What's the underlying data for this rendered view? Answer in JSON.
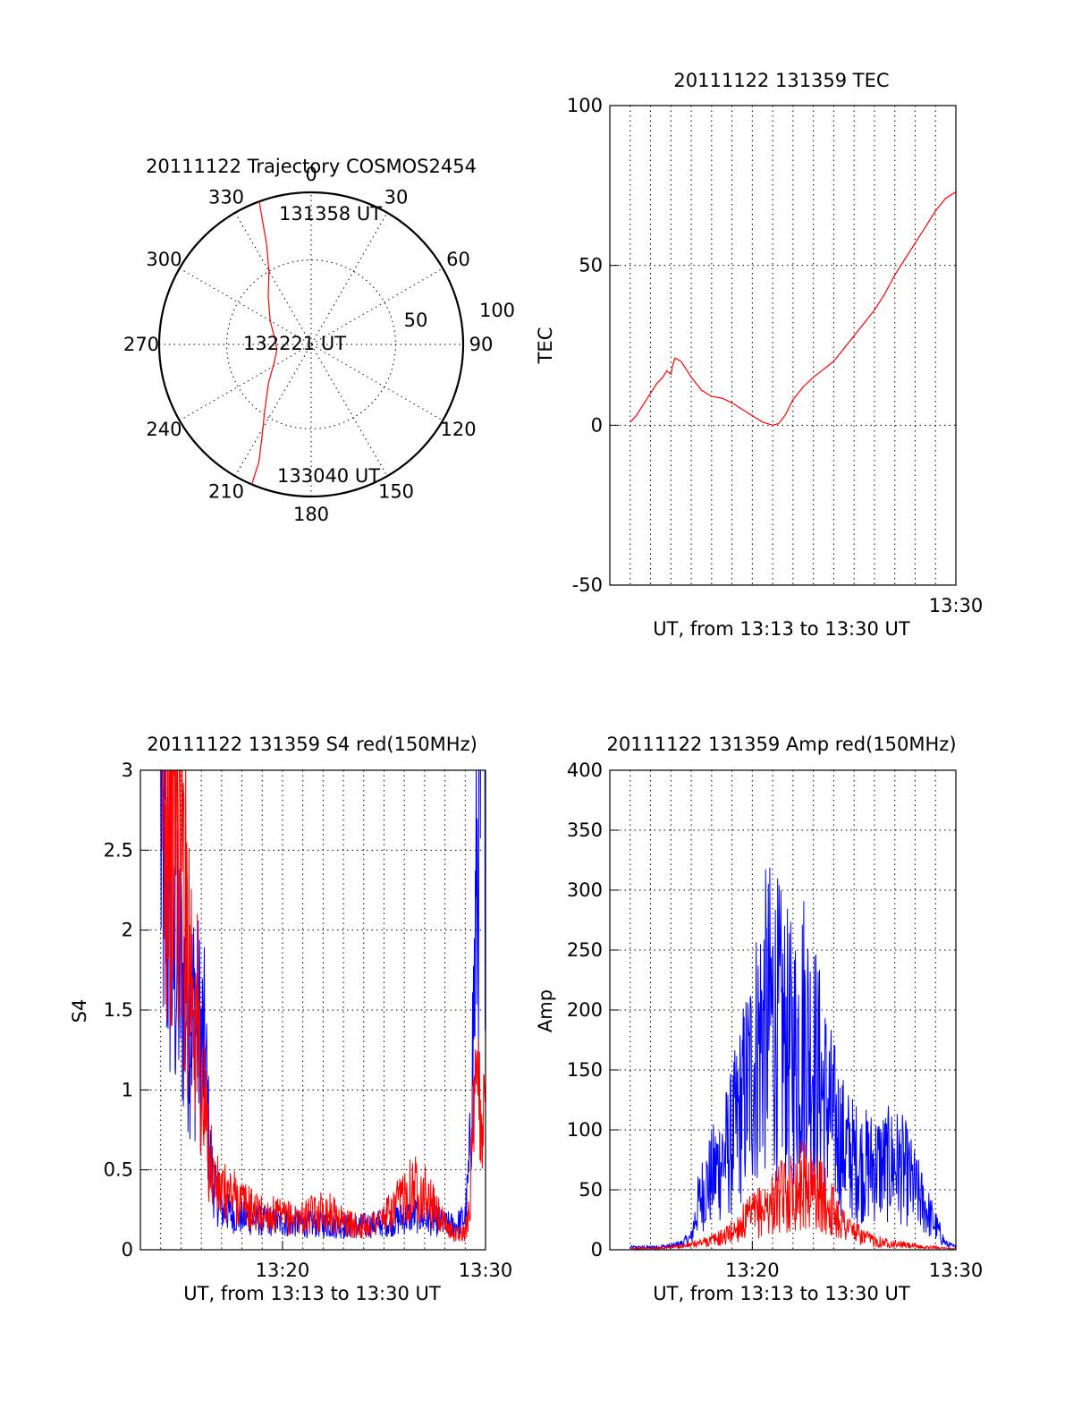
{
  "chart_data": [
    {
      "type": "polar",
      "title": "20111122 Trajectory COSMOS2454",
      "angle_labels": [
        "0",
        "30",
        "60",
        "90",
        "120",
        "150",
        "180",
        "210",
        "240",
        "270",
        "300",
        "330"
      ],
      "radial_labels": [
        "50",
        "100"
      ],
      "track": [
        [
          340,
          90
        ],
        [
          336,
          65
        ],
        [
          330,
          50
        ],
        [
          318,
          38
        ],
        [
          300,
          28
        ],
        [
          280,
          22
        ],
        [
          262,
          20.5
        ],
        [
          245,
          24
        ],
        [
          228,
          34
        ],
        [
          215,
          48
        ],
        [
          208,
          62
        ],
        [
          204,
          76
        ],
        [
          203,
          90
        ]
      ],
      "start_label": "131358 UT",
      "mid_label": "132221 UT",
      "end_label": "133040 UT",
      "color": "#ff0000"
    },
    {
      "type": "line",
      "title": "20111122 131359 TEC",
      "ylabel": "TEC",
      "xlabel": "UT, from 13:13 to 13:30 UT",
      "xlim": [
        "13:13",
        "13:30"
      ],
      "ylim": [
        -50,
        100
      ],
      "yticks": [
        "-50",
        "0",
        "50",
        "100"
      ],
      "xticks": [
        "13:30"
      ],
      "grid": true,
      "series": [
        {
          "color": "#ff0000",
          "x": [
            "13:14.0",
            "13:14.3",
            "13:14.7",
            "13:15.0",
            "13:15.3",
            "13:15.6",
            "13:15.8",
            "13:16.0",
            "13:16.1",
            "13:16.2",
            "13:16.5",
            "13:17.0",
            "13:17.5",
            "13:18.0",
            "13:18.5",
            "13:19.0",
            "13:19.5",
            "13:20.0",
            "13:20.5",
            "13:21.0",
            "13:21.3",
            "13:21.6",
            "13:22.0",
            "13:22.5",
            "13:23.0",
            "13:23.5",
            "13:24.0",
            "13:24.5",
            "13:25.0",
            "13:25.5",
            "13:26.0",
            "13:26.5",
            "13:27.0",
            "13:27.5",
            "13:28.0",
            "13:28.5",
            "13:29.0",
            "13:29.5",
            "13:30.0"
          ],
          "values": [
            1,
            3,
            7,
            10,
            13,
            15,
            17,
            16,
            19,
            21,
            20,
            15,
            11,
            9,
            8.5,
            7,
            5,
            3,
            1,
            0,
            0.5,
            3,
            8,
            12,
            15,
            17.5,
            20,
            24,
            28,
            32,
            36,
            41,
            47,
            52,
            57,
            62,
            67,
            71,
            73
          ]
        }
      ]
    },
    {
      "type": "line",
      "title": "20111122 131359 S4 red(150MHz)",
      "ylabel": "S4",
      "xlabel": "UT, from 13:13 to 13:30 UT",
      "xlim": [
        "13:13",
        "13:30"
      ],
      "ylim": [
        0,
        3
      ],
      "yticks": [
        "0",
        "0.5",
        "1",
        "1.5",
        "2",
        "2.5",
        "3"
      ],
      "xticks": [
        "13:20",
        "13:30"
      ],
      "grid": true,
      "series": [
        {
          "color": "#0000ff",
          "x": [
            "13:14.0",
            "13:14.3",
            "13:14.6",
            "13:14.9",
            "13:15.2",
            "13:15.5",
            "13:15.8",
            "13:16.0",
            "13:16.2",
            "13:16.4",
            "13:16.7",
            "13:17.0",
            "13:17.5",
            "13:18.0",
            "13:18.5",
            "13:19.0",
            "13:19.5",
            "13:20.0",
            "13:20.5",
            "13:21.0",
            "13:21.5",
            "13:22.0",
            "13:22.5",
            "13:23.0",
            "13:23.5",
            "13:24.0",
            "13:24.5",
            "13:25.0",
            "13:25.5",
            "13:26.0",
            "13:26.5",
            "13:27.0",
            "13:27.5",
            "13:28.0",
            "13:28.5",
            "13:29.0",
            "13:29.2",
            "13:29.4",
            "13:29.6",
            "13:29.8",
            "13:30.0"
          ],
          "values": [
            2.6,
            2.1,
            1.8,
            1.7,
            1.6,
            1.5,
            1.4,
            1.3,
            1.2,
            0.6,
            0.35,
            0.25,
            0.22,
            0.2,
            0.19,
            0.18,
            0.18,
            0.17,
            0.17,
            0.16,
            0.16,
            0.16,
            0.15,
            0.15,
            0.15,
            0.15,
            0.16,
            0.17,
            0.18,
            0.2,
            0.22,
            0.2,
            0.18,
            0.16,
            0.15,
            0.2,
            0.5,
            1.4,
            2.4,
            3,
            3
          ]
        },
        {
          "color": "#ff0000",
          "x": [
            "13:14.0",
            "13:14.3",
            "13:14.6",
            "13:14.9",
            "13:15.2",
            "13:15.5",
            "13:15.8",
            "13:16.0",
            "13:16.2",
            "13:16.4",
            "13:16.7",
            "13:17.0",
            "13:17.5",
            "13:18.0",
            "13:18.5",
            "13:19.0",
            "13:19.5",
            "13:20.0",
            "13:20.5",
            "13:21.0",
            "13:21.5",
            "13:22.0",
            "13:22.5",
            "13:23.0",
            "13:23.5",
            "13:24.0",
            "13:24.5",
            "13:25.0",
            "13:25.5",
            "13:26.0",
            "13:26.5",
            "13:27.0",
            "13:27.5",
            "13:28.0",
            "13:28.5",
            "13:29.0",
            "13:29.2",
            "13:29.4",
            "13:29.6",
            "13:29.8",
            "13:30.0"
          ],
          "values": [
            3,
            3,
            2.8,
            2.6,
            2.2,
            1.8,
            1.4,
            1.0,
            0.8,
            0.6,
            0.4,
            0.35,
            0.35,
            0.3,
            0.25,
            0.22,
            0.22,
            0.2,
            0.2,
            0.2,
            0.22,
            0.25,
            0.22,
            0.18,
            0.15,
            0.15,
            0.17,
            0.2,
            0.25,
            0.35,
            0.4,
            0.35,
            0.25,
            0.15,
            0.1,
            0.1,
            0.3,
            0.7,
            1.0,
            0.9,
            0.8
          ]
        }
      ]
    },
    {
      "type": "line",
      "title": "20111122 131359 Amp red(150MHz)",
      "ylabel": "Amp",
      "xlabel": "UT, from 13:13 to 13:30 UT",
      "xlim": [
        "13:13",
        "13:30"
      ],
      "ylim": [
        0,
        400
      ],
      "yticks": [
        "0",
        "50",
        "100",
        "150",
        "200",
        "250",
        "300",
        "350",
        "400"
      ],
      "xticks": [
        "13:20",
        "13:30"
      ],
      "grid": true,
      "series": [
        {
          "color": "#0000ff",
          "x": [
            "13:14.0",
            "13:15.0",
            "13:16.0",
            "13:16.5",
            "13:17.0",
            "13:17.3",
            "13:17.6",
            "13:18.0",
            "13:18.5",
            "13:19.0",
            "13:19.5",
            "13:20.0",
            "13:20.5",
            "13:21.0",
            "13:21.5",
            "13:22.0",
            "13:22.5",
            "13:23.0",
            "13:23.5",
            "13:24.0",
            "13:24.5",
            "13:25.0",
            "13:25.5",
            "13:26.0",
            "13:26.5",
            "13:27.0",
            "13:27.5",
            "13:28.0",
            "13:28.5",
            "13:29.0",
            "13:29.5",
            "13:30.0"
          ],
          "values": [
            2,
            2,
            3,
            5,
            10,
            35,
            50,
            60,
            75,
            90,
            120,
            150,
            185,
            195,
            175,
            160,
            185,
            160,
            130,
            105,
            85,
            75,
            70,
            70,
            70,
            72,
            65,
            50,
            35,
            20,
            5,
            2
          ]
        },
        {
          "color": "#ff0000",
          "x": [
            "13:14.0",
            "13:15.0",
            "13:16.0",
            "13:17.0",
            "13:17.5",
            "13:18.0",
            "13:18.5",
            "13:19.0",
            "13:19.5",
            "13:20.0",
            "13:20.5",
            "13:21.0",
            "13:21.5",
            "13:22.0",
            "13:22.5",
            "13:23.0",
            "13:23.5",
            "13:24.0",
            "13:24.5",
            "13:25.0",
            "13:25.5",
            "13:26.0",
            "13:26.5",
            "13:27.0",
            "13:27.5",
            "13:28.0",
            "13:28.5",
            "13:29.0",
            "13:29.5",
            "13:30.0"
          ],
          "values": [
            1,
            1,
            2,
            4,
            6,
            8,
            10,
            15,
            22,
            28,
            33,
            38,
            45,
            50,
            55,
            52,
            42,
            32,
            22,
            15,
            10,
            8,
            6,
            5,
            4,
            3,
            2,
            2,
            1,
            1
          ]
        }
      ]
    }
  ]
}
